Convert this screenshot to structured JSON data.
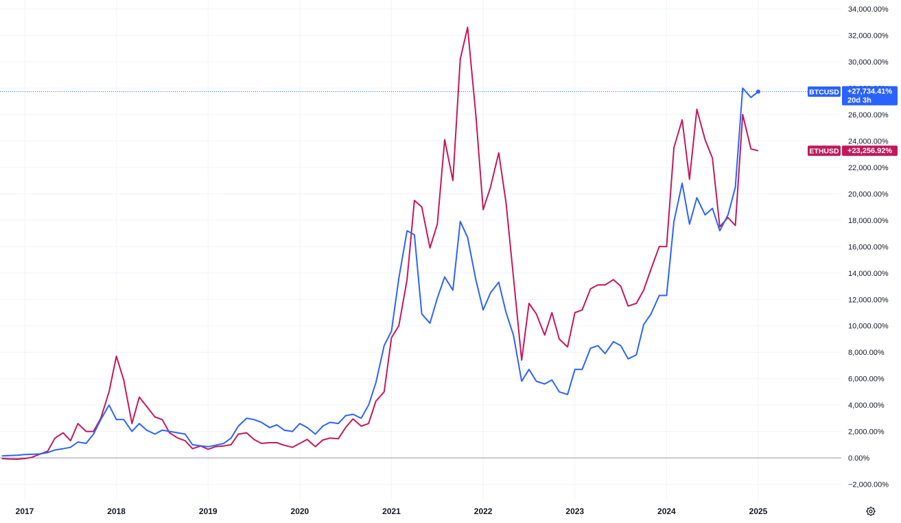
{
  "chart_data": {
    "type": "line",
    "ylim": [
      -3000,
      34500
    ],
    "xlim": [
      2016.75,
      2026.0
    ],
    "y_ticks": [
      {
        "value": 34000,
        "label": "34,000.00%"
      },
      {
        "value": 32000,
        "label": "32,000.00%"
      },
      {
        "value": 30000,
        "label": "30,000.00%"
      },
      {
        "value": 28000,
        "label": "28,000.00%"
      },
      {
        "value": 26000,
        "label": "26,000.00%"
      },
      {
        "value": 24000,
        "label": "24,000.00%"
      },
      {
        "value": 22000,
        "label": "22,000.00%"
      },
      {
        "value": 20000,
        "label": "20,000.00%"
      },
      {
        "value": 18000,
        "label": "18,000.00%"
      },
      {
        "value": 16000,
        "label": "16,000.00%"
      },
      {
        "value": 14000,
        "label": "14,000.00%"
      },
      {
        "value": 12000,
        "label": "12,000.00%"
      },
      {
        "value": 10000,
        "label": "10,000.00%"
      },
      {
        "value": 8000,
        "label": "8,000.00%"
      },
      {
        "value": 6000,
        "label": "6,000.00%"
      },
      {
        "value": 4000,
        "label": "4,000.00%"
      },
      {
        "value": 2000,
        "label": "2,000.00%"
      },
      {
        "value": 0,
        "label": "0.00%"
      },
      {
        "value": -2000,
        "label": "−2,000.00%"
      }
    ],
    "x_ticks": [
      {
        "value": 2017.0,
        "label": "2017"
      },
      {
        "value": 2018.0,
        "label": "2018"
      },
      {
        "value": 2019.0,
        "label": "2019"
      },
      {
        "value": 2020.0,
        "label": "2020"
      },
      {
        "value": 2021.0,
        "label": "2021"
      },
      {
        "value": 2022.0,
        "label": "2022"
      },
      {
        "value": 2023.0,
        "label": "2023"
      },
      {
        "value": 2024.0,
        "label": "2024"
      },
      {
        "value": 2025.0,
        "label": "2025"
      }
    ],
    "grid": true,
    "series": [
      {
        "name": "BTCUSD",
        "color": "#2962ff",
        "last_value": 27734.41,
        "tag_label": "+27,734.41%",
        "countdown": "20d 3h",
        "x": [
          2016.75,
          2016.83,
          2016.92,
          2017.0,
          2017.08,
          2017.17,
          2017.25,
          2017.33,
          2017.42,
          2017.5,
          2017.58,
          2017.67,
          2017.75,
          2017.83,
          2017.92,
          2018.0,
          2018.08,
          2018.17,
          2018.25,
          2018.33,
          2018.42,
          2018.5,
          2018.58,
          2018.67,
          2018.75,
          2018.83,
          2018.92,
          2019.0,
          2019.08,
          2019.17,
          2019.25,
          2019.33,
          2019.42,
          2019.5,
          2019.58,
          2019.67,
          2019.75,
          2019.83,
          2019.92,
          2020.0,
          2020.08,
          2020.17,
          2020.25,
          2020.33,
          2020.42,
          2020.5,
          2020.58,
          2020.67,
          2020.75,
          2020.83,
          2020.92,
          2021.0,
          2021.08,
          2021.17,
          2021.25,
          2021.33,
          2021.42,
          2021.5,
          2021.58,
          2021.67,
          2021.75,
          2021.83,
          2021.92,
          2022.0,
          2022.08,
          2022.17,
          2022.25,
          2022.33,
          2022.42,
          2022.5,
          2022.58,
          2022.67,
          2022.75,
          2022.83,
          2022.92,
          2023.0,
          2023.08,
          2023.17,
          2023.25,
          2023.33,
          2023.42,
          2023.5,
          2023.58,
          2023.67,
          2023.75,
          2023.83,
          2023.92,
          2024.0,
          2024.08,
          2024.17,
          2024.25,
          2024.33,
          2024.42,
          2024.5,
          2024.58,
          2024.67,
          2024.75,
          2024.83,
          2024.92,
          2025.0
        ],
        "y": [
          150,
          180,
          200,
          250,
          270,
          300,
          400,
          600,
          700,
          800,
          1200,
          1100,
          1800,
          2900,
          4000,
          2900,
          2900,
          2000,
          2600,
          2100,
          1800,
          2100,
          2000,
          1900,
          1800,
          1000,
          900,
          850,
          950,
          1100,
          1500,
          2400,
          3000,
          2900,
          2700,
          2300,
          2500,
          2100,
          2000,
          2600,
          2300,
          1800,
          2400,
          2700,
          2600,
          3200,
          3300,
          3000,
          4000,
          5700,
          8500,
          9600,
          13600,
          17200,
          16900,
          10900,
          10200,
          12100,
          13700,
          12700,
          17900,
          16700,
          13500,
          11200,
          12500,
          13300,
          11000,
          9300,
          5800,
          6700,
          5800,
          5600,
          5900,
          5000,
          4800,
          6700,
          6700,
          8300,
          8500,
          7900,
          8800,
          8500,
          7500,
          7800,
          10100,
          10900,
          12300,
          12300,
          17900,
          20800,
          17700,
          19700,
          18400,
          18900,
          17200,
          18400,
          20500,
          28000,
          27300,
          27734
        ]
      },
      {
        "name": "ETHUSD",
        "color": "#c2185b",
        "last_value": 23256.92,
        "tag_label": "+23,256.92%",
        "x": [
          2016.75,
          2016.83,
          2016.92,
          2017.0,
          2017.08,
          2017.17,
          2017.25,
          2017.33,
          2017.42,
          2017.5,
          2017.58,
          2017.67,
          2017.75,
          2017.83,
          2017.92,
          2018.0,
          2018.08,
          2018.17,
          2018.25,
          2018.33,
          2018.42,
          2018.5,
          2018.58,
          2018.67,
          2018.75,
          2018.83,
          2018.92,
          2019.0,
          2019.08,
          2019.17,
          2019.25,
          2019.33,
          2019.42,
          2019.5,
          2019.58,
          2019.67,
          2019.75,
          2019.83,
          2019.92,
          2020.0,
          2020.08,
          2020.17,
          2020.25,
          2020.33,
          2020.42,
          2020.5,
          2020.58,
          2020.67,
          2020.75,
          2020.83,
          2020.92,
          2021.0,
          2021.08,
          2021.17,
          2021.25,
          2021.33,
          2021.42,
          2021.5,
          2021.58,
          2021.67,
          2021.75,
          2021.83,
          2021.92,
          2022.0,
          2022.08,
          2022.17,
          2022.25,
          2022.33,
          2022.42,
          2022.5,
          2022.58,
          2022.67,
          2022.75,
          2022.83,
          2022.92,
          2023.0,
          2023.08,
          2023.17,
          2023.25,
          2023.33,
          2023.42,
          2023.5,
          2023.58,
          2023.67,
          2023.75,
          2023.83,
          2023.92,
          2024.0,
          2024.08,
          2024.17,
          2024.25,
          2024.33,
          2024.42,
          2024.5,
          2024.58,
          2024.67,
          2024.75,
          2024.83,
          2024.92,
          2025.0
        ],
        "y": [
          -50,
          -80,
          -100,
          -50,
          50,
          300,
          500,
          1500,
          1900,
          1300,
          2600,
          2000,
          2000,
          3000,
          5000,
          7700,
          5900,
          2600,
          4600,
          3900,
          3100,
          2900,
          1900,
          1500,
          1300,
          700,
          900,
          650,
          850,
          900,
          1000,
          1800,
          1900,
          1400,
          1100,
          1150,
          1150,
          950,
          800,
          1100,
          1400,
          850,
          1350,
          1500,
          1450,
          2300,
          2950,
          2400,
          2600,
          4300,
          5000,
          9100,
          10000,
          13500,
          19500,
          19000,
          15900,
          17700,
          24100,
          21000,
          30200,
          32600,
          26000,
          18800,
          20500,
          23100,
          19300,
          13700,
          7400,
          11700,
          10900,
          9300,
          11000,
          9000,
          8400,
          11000,
          11200,
          12800,
          13100,
          13100,
          13500,
          13000,
          11500,
          11700,
          12700,
          14300,
          16000,
          16000,
          23500,
          25600,
          21100,
          26400,
          24100,
          22700,
          17500,
          18200,
          17600,
          26000,
          23400,
          23257
        ]
      }
    ]
  },
  "ui": {
    "settings_icon": "gear-icon"
  }
}
